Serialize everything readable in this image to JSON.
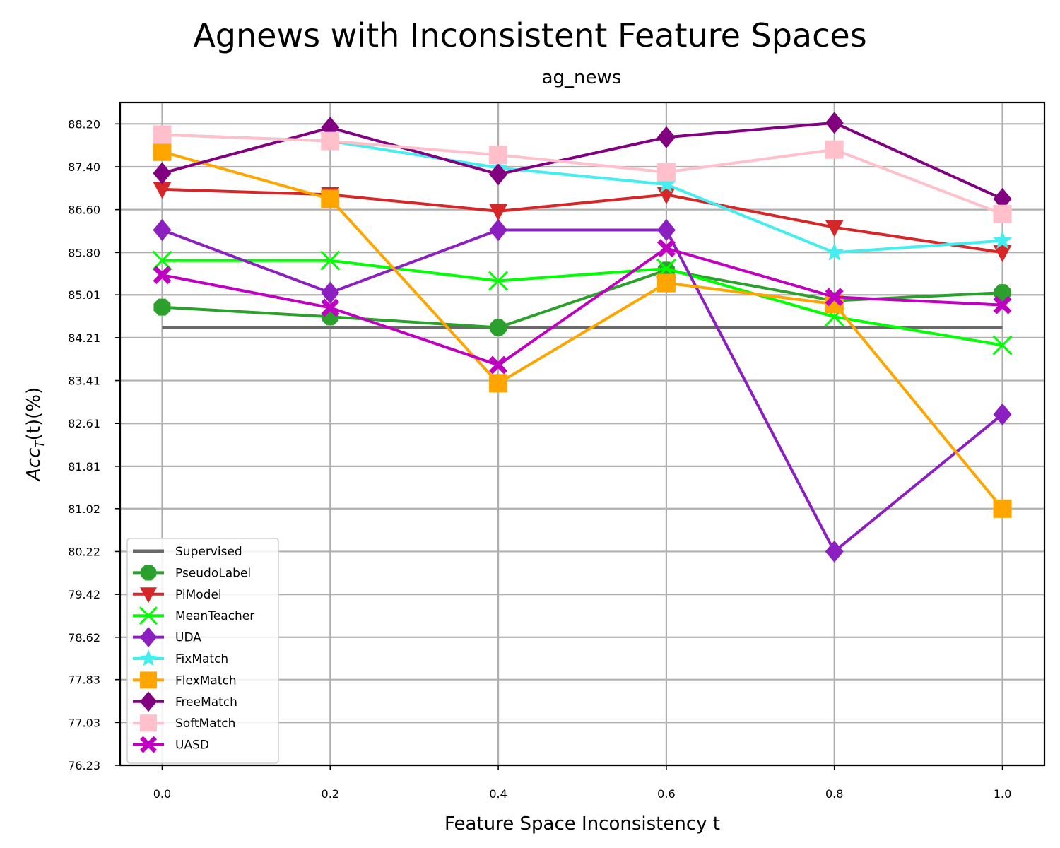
{
  "suptitle": "Agnews with Inconsistent Feature Spaces",
  "chart_data": {
    "type": "line",
    "title": "ag_news",
    "xlabel": "Feature Space Inconsistency t",
    "ylabel_main": "Acc",
    "ylabel_sub": "T",
    "ylabel_rest": "(t)(%)",
    "x": [
      0.0,
      0.2,
      0.4,
      0.6,
      0.8,
      1.0
    ],
    "x_tick_labels": [
      "0.0",
      "0.2",
      "0.4",
      "0.6",
      "0.8",
      "1.0"
    ],
    "xlim": [
      -0.05,
      1.05
    ],
    "y_ticks": [
      76.23,
      77.03,
      77.83,
      78.62,
      79.42,
      80.22,
      81.02,
      81.81,
      82.61,
      83.41,
      84.21,
      85.01,
      85.8,
      86.6,
      87.4,
      88.2
    ],
    "y_tick_labels": [
      "76.23",
      "77.03",
      "77.83",
      "78.62",
      "79.42",
      "80.22",
      "81.02",
      "81.81",
      "82.61",
      "83.41",
      "84.21",
      "85.01",
      "85.80",
      "86.60",
      "87.40",
      "88.20"
    ],
    "ylim": [
      76.23,
      88.6
    ],
    "grid": true,
    "legend_position": "lower-left",
    "series": [
      {
        "name": "Supervised",
        "color": "#696969",
        "marker": "none",
        "values": [
          84.4,
          84.4,
          84.4,
          84.4,
          84.4,
          84.4
        ]
      },
      {
        "name": "PseudoLabel",
        "color": "#2ca02c",
        "marker": "octagon",
        "values": [
          84.78,
          84.6,
          84.4,
          85.47,
          84.9,
          85.05
        ]
      },
      {
        "name": "PiModel",
        "color": "#d62728",
        "marker": "triangle-down",
        "values": [
          86.98,
          86.88,
          86.57,
          86.88,
          86.27,
          85.8
        ]
      },
      {
        "name": "MeanTeacher",
        "color": "#00ff00",
        "marker": "x",
        "values": [
          85.65,
          85.65,
          85.27,
          85.5,
          84.6,
          84.07
        ]
      },
      {
        "name": "UDA",
        "color": "#8b1fbf",
        "marker": "diamond",
        "values": [
          86.22,
          85.05,
          86.22,
          86.22,
          80.22,
          82.78
        ]
      },
      {
        "name": "FixMatch",
        "color": "#44eeee",
        "marker": "star",
        "values": [
          88.0,
          87.88,
          87.38,
          87.07,
          85.8,
          86.02
        ]
      },
      {
        "name": "FlexMatch",
        "color": "#ffa500",
        "marker": "square",
        "values": [
          87.68,
          86.8,
          83.36,
          85.23,
          84.84,
          81.02
        ]
      },
      {
        "name": "FreeMatch",
        "color": "#800080",
        "marker": "diamond",
        "values": [
          87.28,
          88.13,
          87.26,
          87.95,
          88.22,
          86.8
        ]
      },
      {
        "name": "SoftMatch",
        "color": "#ffc0cb",
        "marker": "square",
        "values": [
          88.0,
          87.88,
          87.62,
          87.3,
          87.72,
          86.52
        ]
      },
      {
        "name": "UASD",
        "color": "#c000c0",
        "marker": "x-filled",
        "values": [
          85.38,
          84.77,
          83.7,
          85.88,
          84.97,
          84.82
        ]
      }
    ]
  }
}
